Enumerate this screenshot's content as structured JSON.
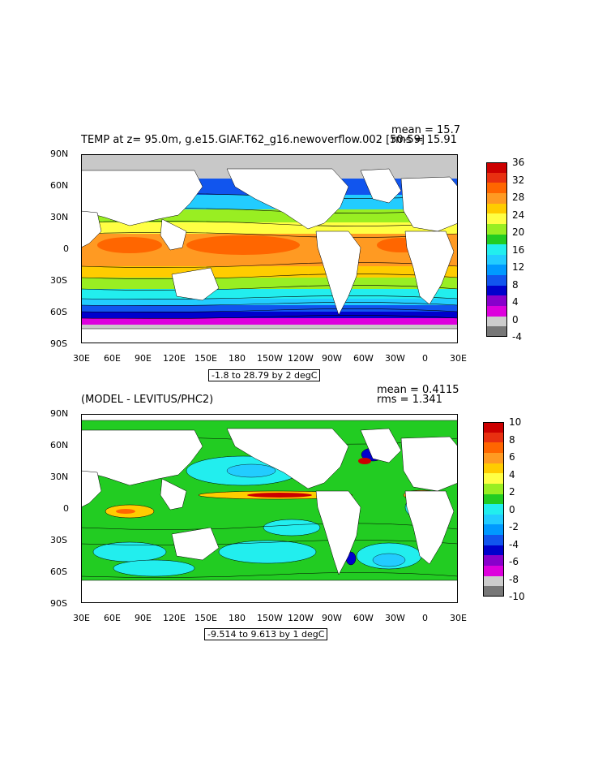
{
  "panels": [
    {
      "title": "TEMP at z=  95.0m, g.e15.GIAF.T62_g16.newoverflow.002 [50-59]",
      "stat1": "mean = 15.7",
      "stat2": "rms = 15.91",
      "range_label": "-1.8 to 28.79 by 2 degC",
      "lat_labels": [
        "90N",
        "60N",
        "30N",
        "0",
        "30S",
        "60S",
        "90S"
      ],
      "lon_labels": [
        "30E",
        "60E",
        "90E",
        "120E",
        "150E",
        "180",
        "150W",
        "120W",
        "90W",
        "60W",
        "30W",
        "0",
        "30E"
      ],
      "colorbar_labels": [
        "36",
        "32",
        "28",
        "24",
        "20",
        "16",
        "12",
        "8",
        "4",
        "0",
        "-4"
      ],
      "colorbar_colors": [
        "#cc0000",
        "#e83010",
        "#ff6600",
        "#ff9a22",
        "#ffcc00",
        "#ffff44",
        "#99ee22",
        "#22cc22",
        "#22eeee",
        "#22ccff",
        "#0099ff",
        "#1155ee",
        "#0000cc",
        "#8800cc",
        "#dd00dd",
        "#cccccc",
        "#777777"
      ]
    },
    {
      "title": "(MODEL - LEVITUS/PHC2)",
      "stat1": "mean = 0.4115",
      "stat2": "rms = 1.341",
      "range_label": "-9.514 to 9.613 by 1 degC",
      "lat_labels": [
        "90N",
        "60N",
        "30N",
        "0",
        "30S",
        "60S",
        "90S"
      ],
      "lon_labels": [
        "30E",
        "60E",
        "90E",
        "120E",
        "150E",
        "180",
        "150W",
        "120W",
        "90W",
        "60W",
        "30W",
        "0",
        "30E"
      ],
      "colorbar_labels": [
        "10",
        "8",
        "6",
        "4",
        "2",
        "0",
        "-2",
        "-4",
        "-6",
        "-8",
        "-10"
      ],
      "colorbar_colors": [
        "#cc0000",
        "#e83010",
        "#ff6600",
        "#ff9a22",
        "#ffcc00",
        "#ffff44",
        "#99ee22",
        "#22cc22",
        "#22eeee",
        "#22ccff",
        "#0099ff",
        "#1155ee",
        "#0000cc",
        "#8800cc",
        "#dd00dd",
        "#cccccc",
        "#777777"
      ]
    }
  ],
  "colors": {
    "land": "#ffffff",
    "sea_ice": "#c8c8c8",
    "contour": "#000000"
  }
}
